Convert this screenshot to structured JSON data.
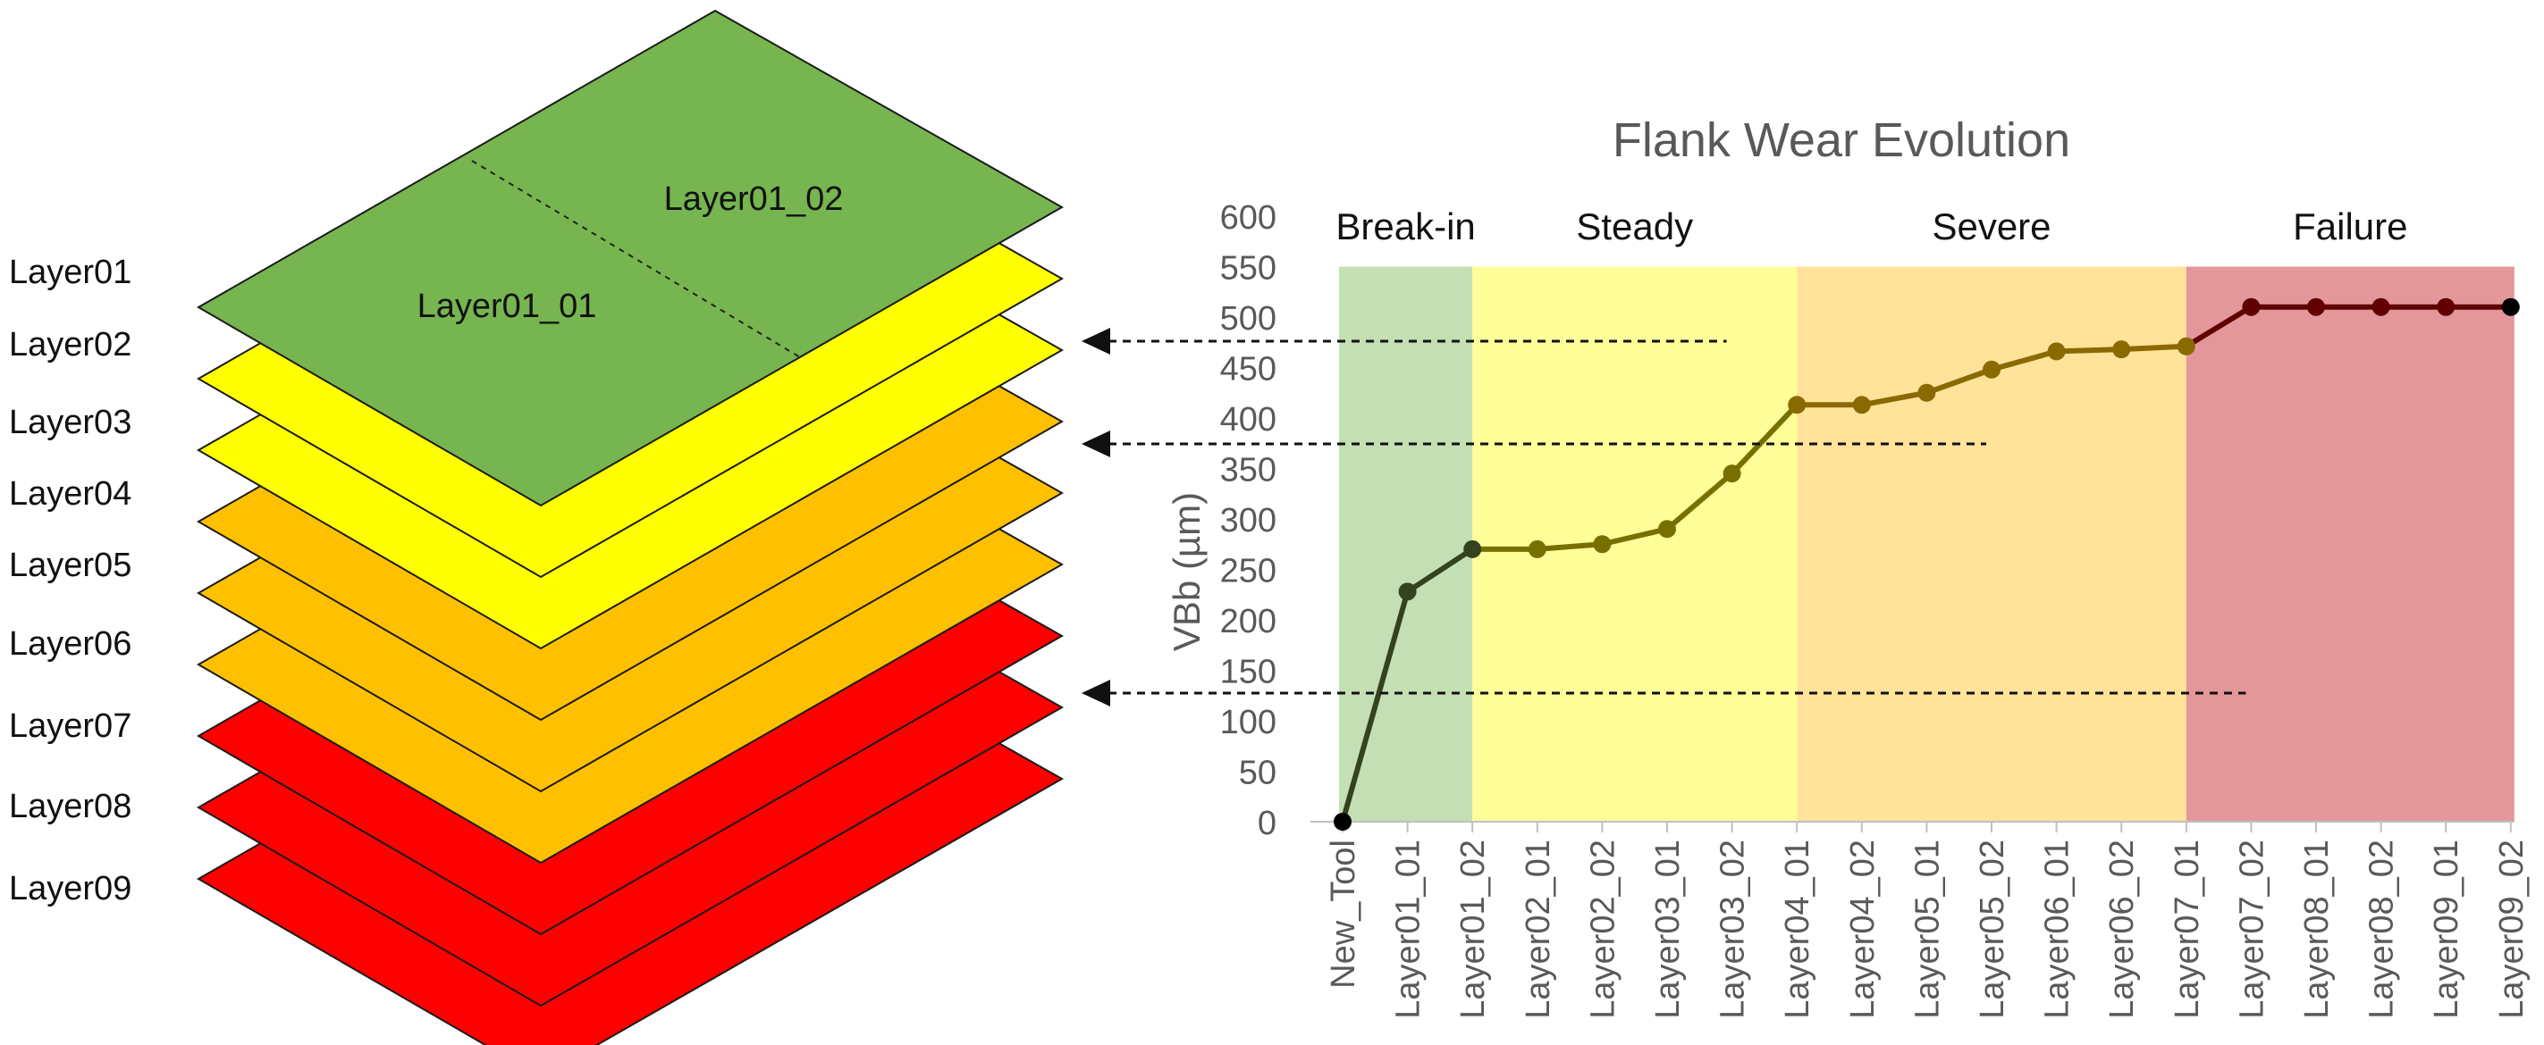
{
  "diagram": {
    "layer_labels": [
      "Layer01",
      "Layer02",
      "Layer03",
      "Layer04",
      "Layer05",
      "Layer06",
      "Layer07",
      "Layer08",
      "Layer09"
    ],
    "layer_colors": [
      "#77b550",
      "#ffff00",
      "#ffff00",
      "#ffc000",
      "#ffc000",
      "#ffc000",
      "#ff0000",
      "#ff0000",
      "#ff0000"
    ],
    "top_sublabels": [
      "Layer01_01",
      "Layer01_02"
    ]
  },
  "chart_data": {
    "type": "line",
    "title": "Flank Wear Evolution",
    "xlabel": "",
    "ylabel": "VBb (µm)",
    "ylim": [
      0,
      600
    ],
    "yticks": [
      0,
      50,
      100,
      150,
      200,
      250,
      300,
      350,
      400,
      450,
      500,
      550,
      600
    ],
    "grid": false,
    "categories": [
      "New_Tool",
      "Layer01_01",
      "Layer01_02",
      "Layer02_01",
      "Layer02_02",
      "Layer03_01",
      "Layer03_02",
      "Layer04_01",
      "Layer04_02",
      "Layer05_01",
      "Layer05_02",
      "Layer06_01",
      "Layer06_02",
      "Layer07_01",
      "Layer07_02",
      "Layer08_01",
      "Layer08_02",
      "Layer09_01",
      "Layer09_02"
    ],
    "values": [
      0,
      228,
      270,
      270,
      275,
      290,
      345,
      413,
      413,
      425,
      448,
      466,
      468,
      471,
      510,
      510,
      510,
      510,
      510
    ],
    "phases": [
      {
        "label": "Break-in",
        "from": 0,
        "to": 2,
        "color": "#c5dfb4"
      },
      {
        "label": "Steady",
        "from": 2,
        "to": 7,
        "color": "#fffe99"
      },
      {
        "label": "Severe",
        "from": 7,
        "to": 13,
        "color": "#ffe39a"
      },
      {
        "label": "Failure",
        "from": 13,
        "to": 18,
        "color": "#e4979a"
      }
    ],
    "phase_line_colors": [
      "#34431f",
      "#777000",
      "#8a6a00",
      "#600000"
    ],
    "arrows": [
      {
        "category": "Layer03_02",
        "target_layer": "Layer02"
      },
      {
        "category": "Layer05_02",
        "target_layer": "Layer03"
      },
      {
        "category": "Layer07_02",
        "target_layer": "Layer06"
      }
    ]
  }
}
